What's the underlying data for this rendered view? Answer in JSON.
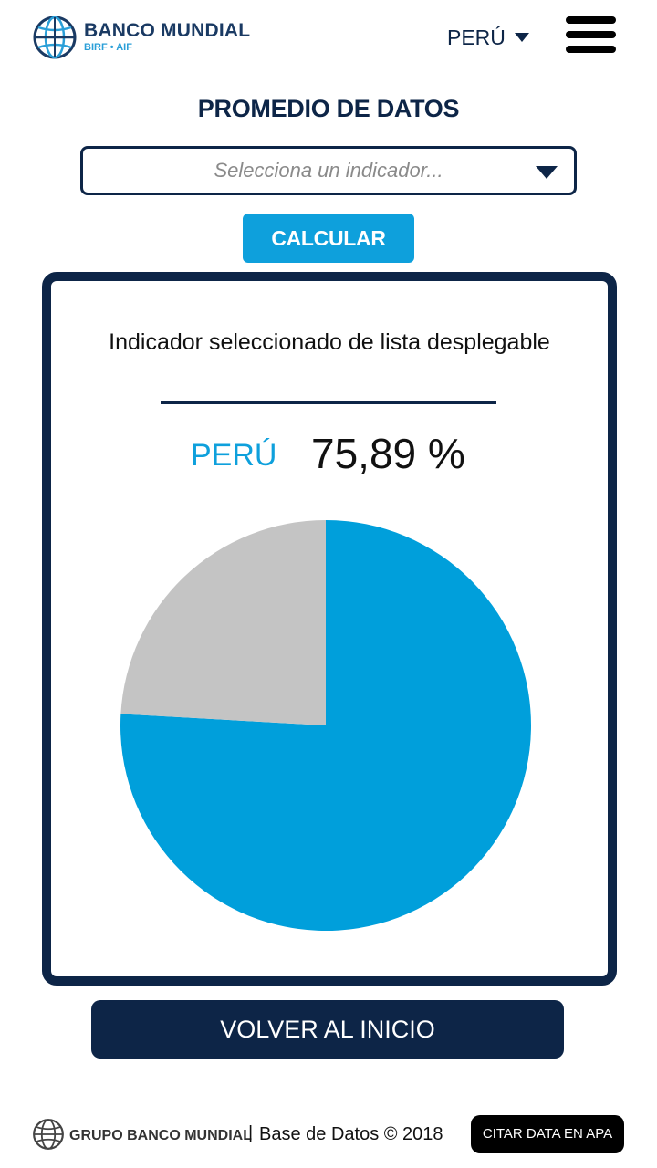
{
  "header": {
    "logo_title": "BANCO MUNDIAL",
    "logo_subtitle": "BIRF • AIF",
    "country": "PERÚ"
  },
  "main": {
    "title": "PROMEDIO DE DATOS",
    "indicator_placeholder": "Selecciona un indicador...",
    "calculate_label": "CALCULAR"
  },
  "result": {
    "indicator_name": "Indicador seleccionado de lista desplegable",
    "country": "PERÚ",
    "value": "75,89 %"
  },
  "chart_data": {
    "type": "pie",
    "categories": [
      "PERÚ",
      ""
    ],
    "values": [
      75.89,
      24.11
    ],
    "colors": [
      "#009fdb",
      "#c4c4c4"
    ]
  },
  "back_label": "VOLVER AL INICIO",
  "footer": {
    "org_name": "GRUPO BANCO MUNDIAL",
    "separator": "|",
    "copyright": "Base de Datos © 2018",
    "cite_label": "CITAR DATA EN APA"
  }
}
